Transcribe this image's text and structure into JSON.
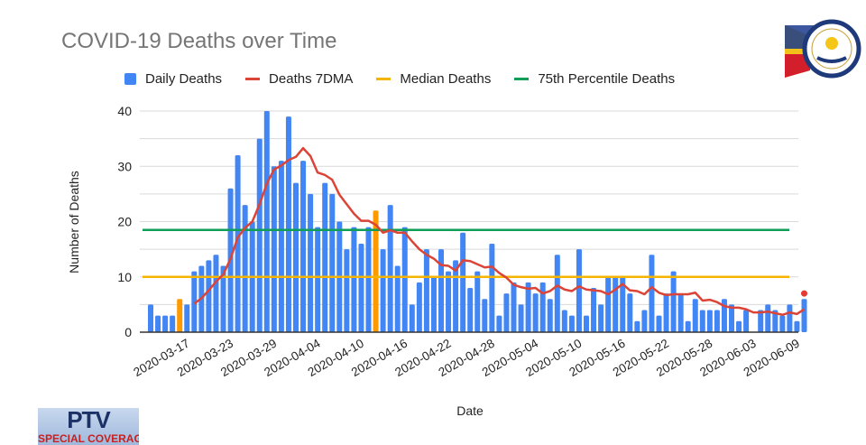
{
  "chart_data": {
    "type": "bar",
    "title": "COVID-19 Deaths over Time",
    "xlabel": "Date",
    "ylabel": "Number of Deaths",
    "ylim": [
      0,
      40
    ],
    "yticks": [
      "0",
      "10",
      "20",
      "30",
      "40"
    ],
    "grid": true,
    "legend_position": "top",
    "xtick_labels": [
      "2020-03-17",
      "2020-03-23",
      "2020-03-29",
      "2020-04-04",
      "2020-04-10",
      "2020-04-16",
      "2020-04-22",
      "2020-04-28",
      "2020-05-04",
      "2020-05-10",
      "2020-05-16",
      "2020-05-22",
      "2020-05-28",
      "2020-06-03",
      "2020-06-09"
    ],
    "x_start": "2020-03-13",
    "x_end": "2020-06-11",
    "highlighted_dates": [
      "2020-03-17",
      "2020-04-13"
    ],
    "series": [
      {
        "name": "Daily Deaths",
        "type": "bar",
        "color": "#4285f4",
        "highlight_color": "#ff9900",
        "values": [
          5,
          3,
          3,
          3,
          6,
          5,
          11,
          12,
          13,
          14,
          12,
          26,
          32,
          23,
          20,
          35,
          40,
          30,
          31,
          39,
          27,
          31,
          25,
          19,
          27,
          25,
          20,
          15,
          19,
          16,
          19,
          22,
          15,
          23,
          12,
          19,
          5,
          9,
          15,
          10,
          15,
          11,
          13,
          18,
          8,
          11,
          6,
          16,
          3,
          7,
          9,
          5,
          9,
          7,
          9,
          6,
          14,
          4,
          3,
          15,
          3,
          8,
          5,
          10,
          10,
          10,
          7,
          2,
          4,
          14,
          3,
          7,
          11,
          7,
          2,
          6,
          4,
          4,
          4,
          6,
          5,
          2,
          4,
          0,
          4,
          5,
          4,
          3,
          5,
          2,
          6
        ]
      },
      {
        "name": "Deaths 7DMA",
        "type": "line",
        "color": "#db4437",
        "start_date": "2020-03-19",
        "values": [
          5.14,
          6.14,
          7.57,
          9.14,
          10.43,
          13.29,
          17.14,
          18.86,
          20,
          23.14,
          26.86,
          29.43,
          30.14,
          31.14,
          31.71,
          33.29,
          31.86,
          28.86,
          28.43,
          27.57,
          24.86,
          23.14,
          21.43,
          20.14,
          20.14,
          19.43,
          18,
          18.43,
          18,
          18,
          16.43,
          15,
          14,
          13.29,
          12.14,
          12,
          11.14,
          13,
          12.86,
          12.29,
          11.71,
          11.86,
          10.71,
          9.86,
          8.57,
          8.14,
          7.86,
          8,
          7,
          7.43,
          8.43,
          7.71,
          7.43,
          8.29,
          7.71,
          7.57,
          7.43,
          6.86,
          7.71,
          8.71,
          7.57,
          7.43,
          6.86,
          8.14,
          7.14,
          6.71,
          6.86,
          6.86,
          6.86,
          7.14,
          5.71,
          5.86,
          5.43,
          4.71,
          4.43,
          4.43,
          4.14,
          3.57,
          3.57,
          3.71,
          3.43,
          3.14,
          3.57,
          3.29,
          4.14
        ]
      },
      {
        "name": "Median Deaths",
        "type": "hline",
        "color": "#f4b400",
        "value": 10
      },
      {
        "name": "75th Percentile Deaths",
        "type": "hline",
        "color": "#0f9d58",
        "value": 18.5
      }
    ],
    "annotations": [
      {
        "date": "2020-06-11",
        "value": 7,
        "marker": "red-dot",
        "color": "#e53935"
      }
    ]
  },
  "logos": {
    "top_right": "Presidential Broadcast Staff RTVM Philippines",
    "bottom_left": "PTV SPECIAL COVERAGE",
    "bottom_left_line1": "PTV",
    "bottom_left_line2": "SPECIAL COVERAGE"
  }
}
